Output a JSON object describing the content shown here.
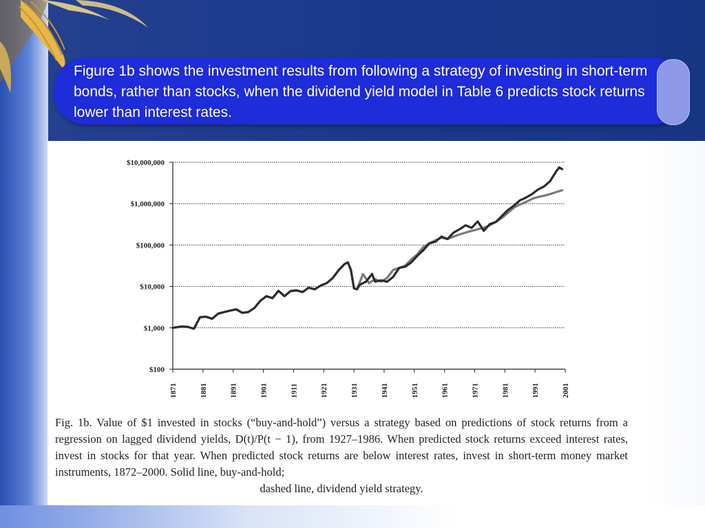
{
  "slide": {
    "callout_text": "Figure 1b shows the investment results from following a strategy of investing in short-term bonds, rather than stocks, when the dividend yield model in Table 6 predicts stock returns lower than interest rates.",
    "caption_main": "Fig. 1b. Value of $1 invested in stocks (“buy-and-hold”) versus a strategy based on predictions of stock returns from a regression on lagged dividend yields, D(t)/P(t − 1), from 1927–1986. When predicted stock returns exceed interest rates, invest in stocks for that year. When predicted stock returns are below interest rates, invest in short-term money market instruments, 1872–2000. Solid line, buy-and-hold;",
    "caption_last": "dashed line, dividend yield strategy.",
    "colors": {
      "callout": "#1e2cd9",
      "buy_and_hold": "#2b2b2b",
      "dividend_strategy": "#7a7a7a"
    }
  },
  "chart_data": {
    "type": "line",
    "title": "",
    "xlabel": "",
    "ylabel": "",
    "y_scale": "log",
    "ylim": [
      100,
      10000000
    ],
    "xlim": [
      1871,
      2001
    ],
    "y_ticks": [
      100,
      1000,
      10000,
      100000,
      1000000,
      10000000
    ],
    "y_tick_labels": [
      "$100",
      "$1,000",
      "$10,000",
      "$100,000",
      "$1,000,000",
      "$10,000,000"
    ],
    "x_ticks": [
      1871,
      1881,
      1891,
      1901,
      1911,
      1921,
      1931,
      1941,
      1951,
      1961,
      1971,
      1981,
      1991,
      2001
    ],
    "x_tick_labels": [
      "1871",
      "1881",
      "1891",
      "1901",
      "1911",
      "1921",
      "1931",
      "1941",
      "1951",
      "1961",
      "1971",
      "1981",
      "1991",
      "2001"
    ],
    "grid": "horizontal dotted",
    "series": [
      {
        "name": "Solid line, buy-and-hold",
        "color": "#2b2b2b",
        "x": [
          1871,
          1874,
          1876,
          1878,
          1880,
          1882,
          1884,
          1886,
          1888,
          1890,
          1892,
          1894,
          1896,
          1898,
          1900,
          1902,
          1904,
          1906,
          1908,
          1910,
          1912,
          1914,
          1916,
          1918,
          1920,
          1922,
          1924,
          1926,
          1928,
          1929,
          1930,
          1931,
          1932,
          1933,
          1935,
          1937,
          1938,
          1940,
          1942,
          1944,
          1946,
          1948,
          1950,
          1952,
          1954,
          1956,
          1958,
          1960,
          1962,
          1964,
          1966,
          1968,
          1970,
          1972,
          1973,
          1974,
          1976,
          1978,
          1980,
          1982,
          1984,
          1986,
          1988,
          1990,
          1992,
          1994,
          1996,
          1998,
          1999,
          2000
        ],
        "values": [
          1000,
          1080,
          1050,
          950,
          1800,
          1850,
          1650,
          2200,
          2400,
          2600,
          2800,
          2300,
          2400,
          3000,
          4500,
          5800,
          5200,
          7800,
          5800,
          7700,
          8000,
          7300,
          9300,
          8500,
          10500,
          12000,
          16000,
          25000,
          35000,
          38000,
          25000,
          9000,
          8500,
          11000,
          13000,
          20000,
          13000,
          14000,
          13000,
          17000,
          28000,
          30000,
          38000,
          55000,
          75000,
          110000,
          120000,
          160000,
          140000,
          200000,
          240000,
          300000,
          260000,
          370000,
          290000,
          220000,
          320000,
          360000,
          500000,
          700000,
          900000,
          1200000,
          1400000,
          1700000,
          2200000,
          2600000,
          3500000,
          6000000,
          7500000,
          6800000
        ]
      },
      {
        "name": "dashed line, dividend yield strategy",
        "color": "#7a7a7a",
        "x": [
          1871,
          1874,
          1876,
          1878,
          1880,
          1882,
          1884,
          1886,
          1888,
          1890,
          1892,
          1894,
          1896,
          1898,
          1900,
          1902,
          1904,
          1906,
          1908,
          1910,
          1912,
          1914,
          1916,
          1918,
          1920,
          1922,
          1924,
          1926,
          1928,
          1929,
          1930,
          1931,
          1932,
          1934,
          1936,
          1938,
          1940,
          1942,
          1944,
          1946,
          1948,
          1950,
          1952,
          1954,
          1956,
          1958,
          1960,
          1962,
          1964,
          1966,
          1968,
          1970,
          1972,
          1974,
          1976,
          1978,
          1980,
          1982,
          1984,
          1986,
          1988,
          1990,
          1992,
          1994,
          1996,
          1998,
          2000
        ],
        "values": [
          1000,
          1080,
          1050,
          950,
          1800,
          1850,
          1650,
          2200,
          2400,
          2600,
          2800,
          2300,
          2400,
          3000,
          4500,
          5800,
          5200,
          7800,
          5800,
          7700,
          8000,
          7300,
          9300,
          8500,
          10500,
          12000,
          16000,
          25000,
          35000,
          38000,
          25000,
          9000,
          8500,
          20000,
          12000,
          15000,
          13000,
          16000,
          25000,
          28000,
          32000,
          45000,
          60000,
          90000,
          110000,
          130000,
          150000,
          140000,
          160000,
          180000,
          200000,
          220000,
          240000,
          260000,
          300000,
          360000,
          450000,
          600000,
          800000,
          950000,
          1100000,
          1300000,
          1450000,
          1550000,
          1700000,
          1900000,
          2100000
        ]
      }
    ]
  }
}
